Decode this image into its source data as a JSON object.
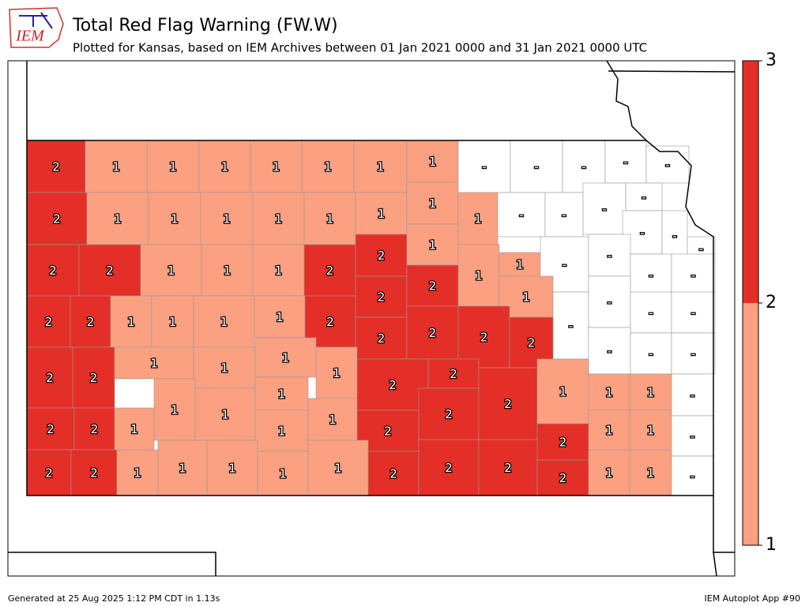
{
  "logo_text": "IEM",
  "title": "Total Red Flag Warning (FW.W)",
  "subtitle": "Plotted for Kansas, based on IEM Archives  between 01 Jan 2021 0000 and 31 Jan 2021 0000 UTC",
  "footer_left": "Generated at 25 Aug 2025 1:12 PM CDT in 1.13s",
  "footer_right": "IEM Autoplot App #90",
  "chart_data": {
    "type": "choropleth",
    "null_label": "-",
    "values": [
      2,
      1,
      1,
      1,
      1,
      1,
      1,
      1,
      null,
      null,
      null,
      null,
      null,
      2,
      1,
      1,
      1,
      1,
      1,
      1,
      1,
      1,
      null,
      null,
      null,
      null,
      null,
      null,
      null,
      2,
      2,
      1,
      1,
      1,
      2,
      2,
      1,
      1,
      1,
      null,
      null,
      null,
      null,
      2,
      2,
      1,
      1,
      1,
      1,
      2,
      2,
      2,
      1,
      null,
      null,
      null,
      null,
      2,
      2,
      2,
      2,
      null,
      null,
      null,
      2,
      2,
      1,
      1,
      1,
      1,
      1,
      1,
      1,
      1,
      1,
      2,
      2,
      2,
      2,
      1,
      1,
      1,
      null,
      2,
      2,
      1,
      2,
      2,
      1,
      1,
      null,
      2,
      2,
      1,
      1,
      1,
      1,
      1,
      2,
      2,
      2,
      2,
      1,
      1,
      null
    ],
    "colorbar": {
      "ticks": [
        1,
        2,
        3
      ],
      "colors": [
        "#fca082",
        "#e32f27"
      ]
    }
  }
}
